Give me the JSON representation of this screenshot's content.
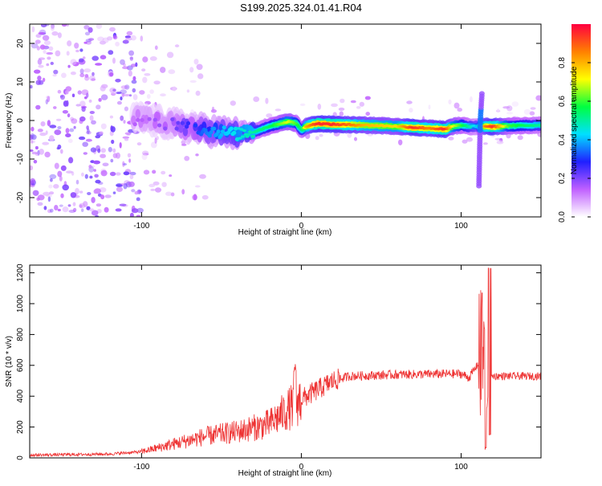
{
  "figure": {
    "title": "S199.2025.324.01.41.R04"
  },
  "chart_data": [
    {
      "type": "heatmap",
      "xlabel": "Height of straight line (km)",
      "ylabel": "Frequency (Hz)",
      "xlim": [
        -170,
        150
      ],
      "ylim": [
        -25,
        25
      ],
      "xticks": [
        -100,
        0,
        100
      ],
      "yticks": [
        -20,
        -10,
        0,
        10,
        20
      ],
      "colorbar": {
        "label": "Normalized spectral amplitude",
        "range": [
          0,
          1
        ],
        "ticks": [
          0.0,
          0.2,
          0.4,
          0.6,
          0.8
        ],
        "tick_labels": [
          "0.0",
          "0.2",
          "0.4",
          "0.6",
          "0.8"
        ],
        "colors": [
          "#ffffff",
          "#c060ff",
          "#2020ff",
          "#00e0ff",
          "#00ff40",
          "#ffff00",
          "#ff8000",
          "#ff0040"
        ]
      },
      "ridge": {
        "description_points_x": [
          -100,
          -80,
          -60,
          -40,
          -30,
          -20,
          -15,
          -8,
          -3,
          0,
          3,
          10,
          20,
          40,
          60,
          70,
          80,
          90,
          95,
          100,
          105,
          110,
          115,
          120,
          130,
          150
        ],
        "freq_hz": [
          0.5,
          -1,
          -2.5,
          -3.5,
          -3,
          -1.5,
          -1,
          -0.3,
          -0.8,
          -2.5,
          -1.5,
          -0.8,
          -1,
          -1.2,
          -1.5,
          -1.8,
          -2,
          -2.3,
          -1.5,
          -1.2,
          -1.6,
          -1.5,
          -1.5,
          -1.6,
          -1.4,
          -1.2
        ],
        "amplitude": [
          0.15,
          0.2,
          0.35,
          0.45,
          0.5,
          0.55,
          0.6,
          0.7,
          0.6,
          0.5,
          0.8,
          0.95,
          0.95,
          0.8,
          0.75,
          0.95,
          0.85,
          0.95,
          0.7,
          0.6,
          0.5,
          0.4,
          0.85,
          0.95,
          0.6,
          0.5
        ]
      },
      "spike": {
        "x": 112,
        "freq_range": [
          -17,
          7
        ]
      }
    },
    {
      "type": "line",
      "xlabel": "Height of straight line (km)",
      "ylabel": "SNR (10 * v/v)",
      "xlim": [
        -170,
        150
      ],
      "ylim": [
        0,
        1250
      ],
      "xticks": [
        -100,
        0,
        100
      ],
      "yticks": [
        0,
        200,
        400,
        600,
        800,
        1000,
        1200
      ],
      "line_color": "#ee3333",
      "trend": {
        "x": [
          -170,
          -120,
          -100,
          -80,
          -60,
          -40,
          -20,
          0,
          10,
          20,
          30,
          60,
          100,
          105,
          110,
          114,
          116,
          118,
          120,
          150
        ],
        "y": [
          18,
          25,
          40,
          90,
          140,
          170,
          220,
          380,
          440,
          500,
          530,
          540,
          545,
          520,
          600,
          700,
          300,
          520,
          530,
          530
        ]
      },
      "features": {
        "peak_near_0_km": 620,
        "spike_max": 1230,
        "spike_secondary": 1070,
        "spike_min": 50
      }
    }
  ]
}
